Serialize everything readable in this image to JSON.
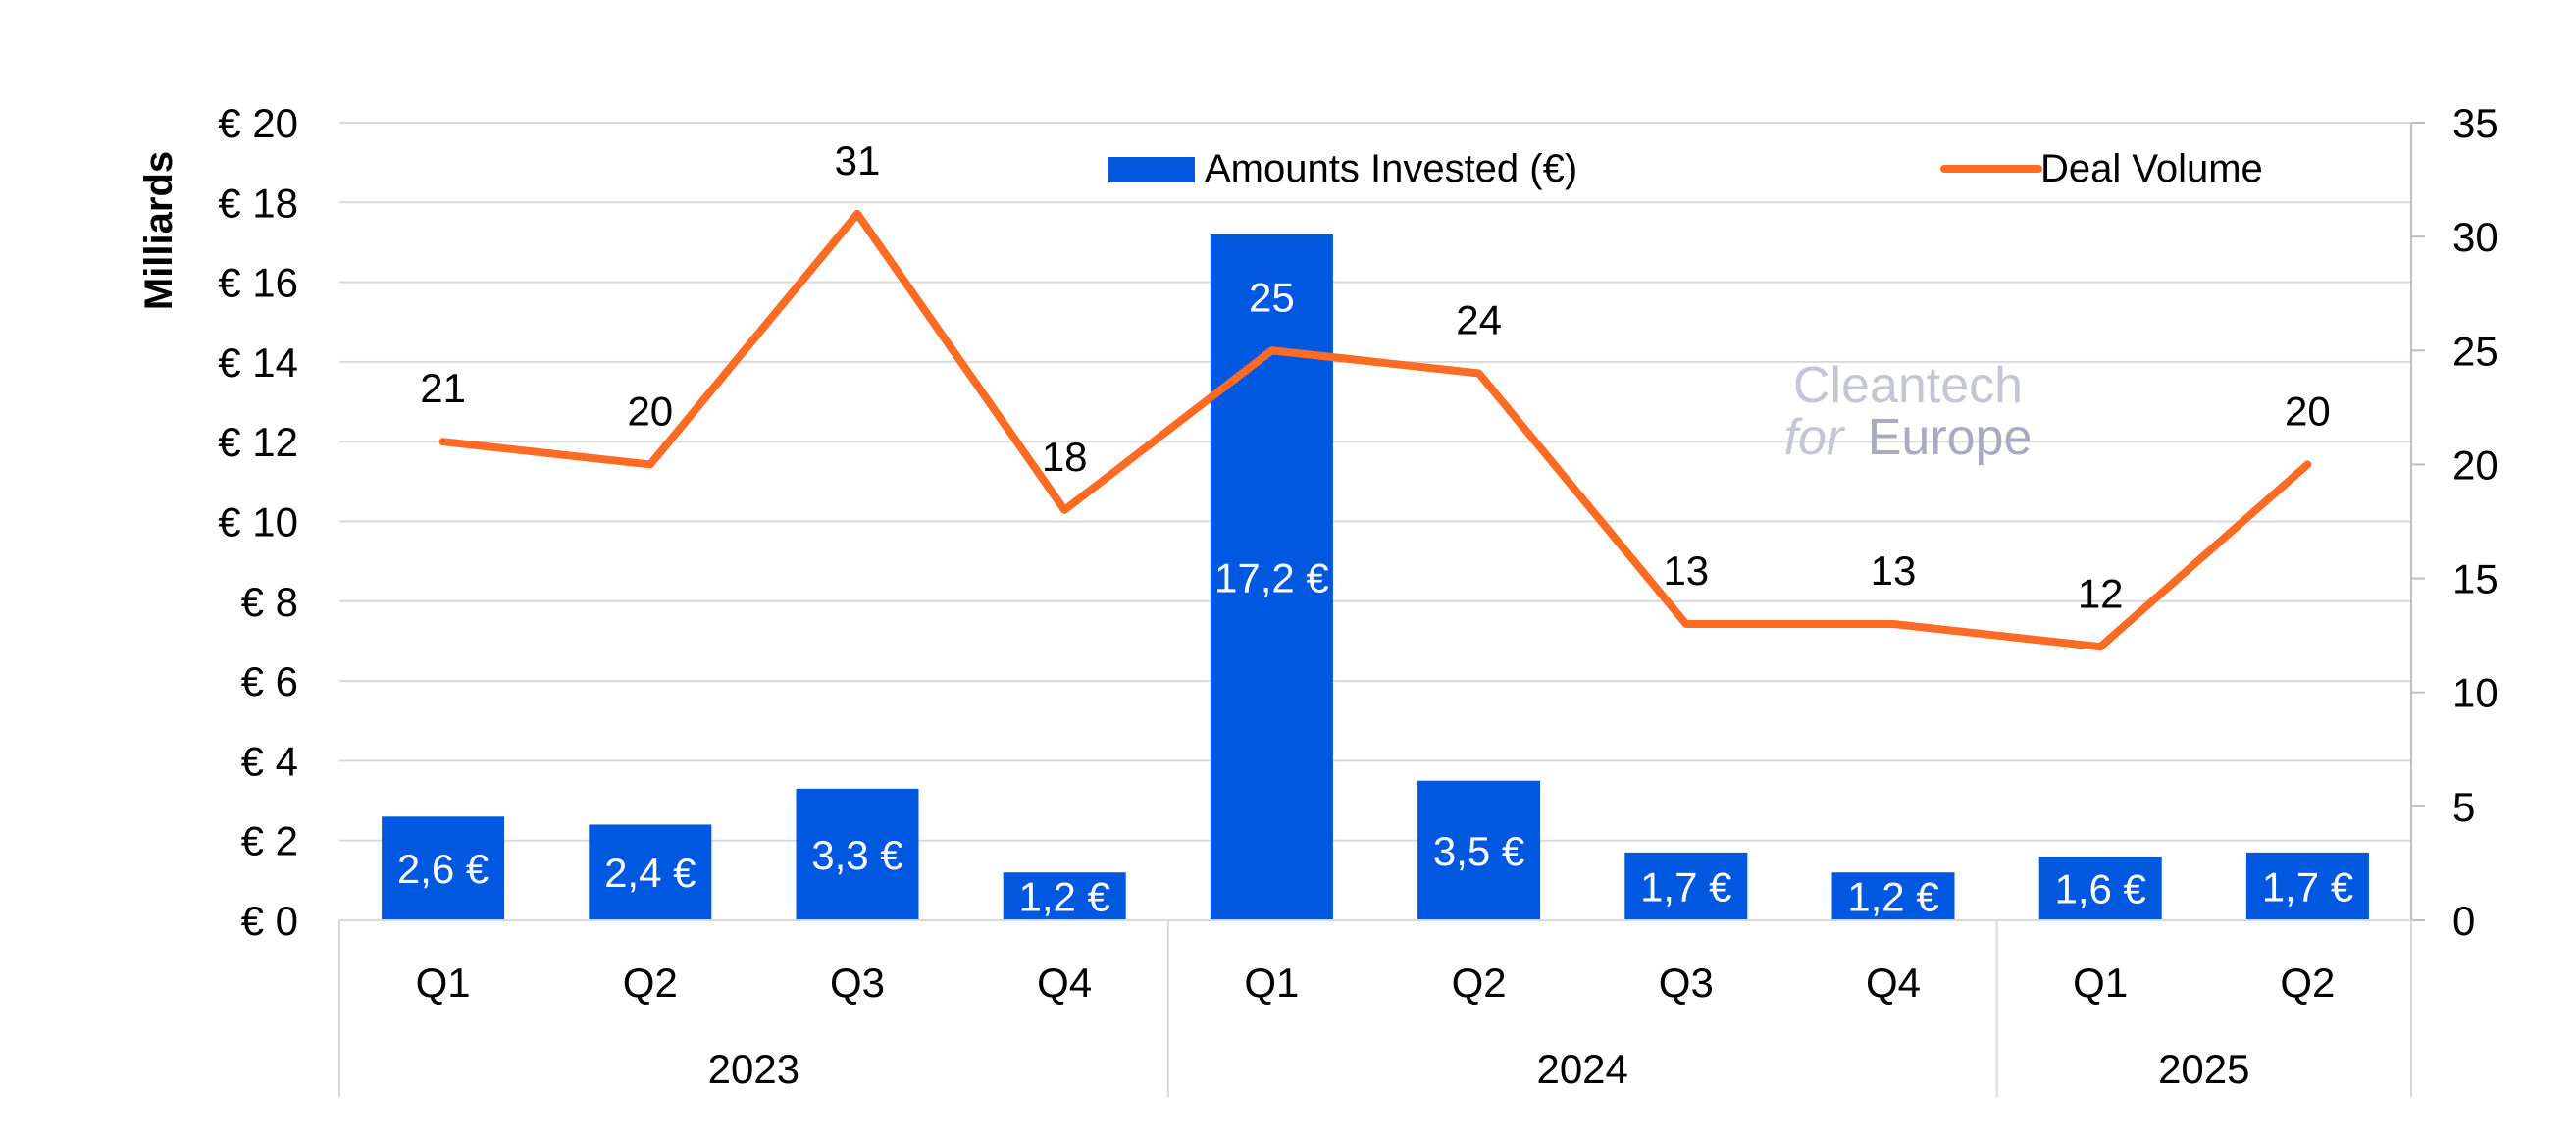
{
  "chart_data": {
    "type": "bar",
    "y_axis_left": {
      "label": "Milliards",
      "ylim": [
        0,
        20
      ],
      "ticks": [
        0,
        2,
        4,
        6,
        8,
        10,
        12,
        14,
        16,
        18,
        20
      ],
      "tick_labels": [
        "€ 0",
        "€ 2",
        "€ 4",
        "€ 6",
        "€ 8",
        "€ 10",
        "€ 12",
        "€ 14",
        "€ 16",
        "€ 18",
        "€ 20"
      ]
    },
    "y_axis_right": {
      "ylim": [
        0,
        35
      ],
      "ticks": [
        0,
        5,
        10,
        15,
        20,
        25,
        30,
        35
      ],
      "tick_labels": [
        "0",
        "5",
        "10",
        "15",
        "20",
        "25",
        "30",
        "35"
      ]
    },
    "categories": [
      "Q1",
      "Q2",
      "Q3",
      "Q4",
      "Q1",
      "Q2",
      "Q3",
      "Q4",
      "Q1",
      "Q2"
    ],
    "year_groups": [
      {
        "label": "2023",
        "start": 0,
        "count": 4
      },
      {
        "label": "2024",
        "start": 4,
        "count": 4
      },
      {
        "label": "2025",
        "start": 8,
        "count": 2
      }
    ],
    "series": [
      {
        "name": "Amounts Invested (€)",
        "type": "bar",
        "axis": "left",
        "color": "#0057E0",
        "values": [
          2.6,
          2.4,
          3.3,
          1.2,
          17.2,
          3.5,
          1.7,
          1.2,
          1.6,
          1.7
        ],
        "data_labels": [
          "2,6 €",
          "2,4 €",
          "3,3 €",
          "1,2 €",
          "17,2 €",
          "3,5 €",
          "1,7 €",
          "1,2 €",
          "1,6 €",
          "1,7 €"
        ]
      },
      {
        "name": "Deal Volume",
        "type": "line",
        "axis": "right",
        "color": "#FF6B22",
        "values": [
          21,
          20,
          31,
          18,
          25,
          24,
          13,
          13,
          12,
          20
        ],
        "data_labels": [
          "21",
          "20",
          "31",
          "18",
          "25",
          "24",
          "13",
          "13",
          "12",
          "20"
        ]
      }
    ],
    "grid": true,
    "legend_position": "top",
    "watermark": {
      "line1": "Cleantech",
      "line2_prefix": "for",
      "line2_main": "Europe"
    }
  }
}
